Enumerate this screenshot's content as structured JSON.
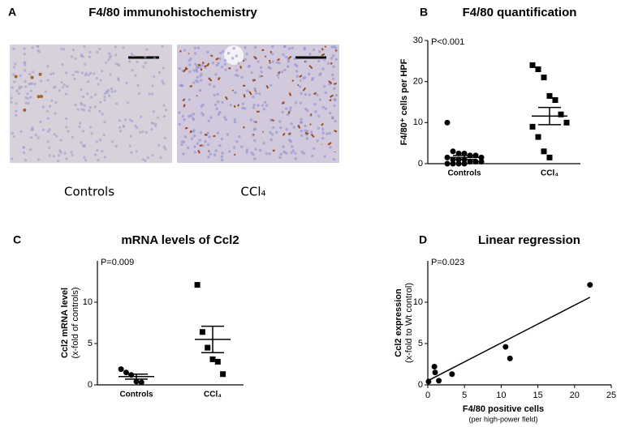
{
  "panel_a": {
    "label": "A",
    "title": "F4/80 immunohistochemistry",
    "captions": [
      "Controls",
      "CCl₄"
    ]
  },
  "chart_data": [
    {
      "type": "dot",
      "label": "B",
      "title": "F4/80 quantification",
      "annotation": "P<0.001",
      "ylabel": "F4/80⁺ cells per HPF",
      "categories": [
        "Controls",
        "CCl₄"
      ],
      "values": [
        [
          10,
          3,
          2.5,
          2.5,
          2,
          2,
          1.5,
          1.5,
          1,
          1,
          1,
          0.5,
          0.5,
          0.5,
          0,
          0,
          0,
          0
        ],
        [
          24,
          23,
          21,
          16.5,
          15.5,
          12,
          10,
          9,
          6.5,
          3,
          1.5
        ]
      ],
      "mean": [
        1.5,
        11.6
      ],
      "sem": [
        0.5,
        2.1
      ],
      "markers": [
        "circle",
        "square"
      ],
      "color": "#000000",
      "ylim": [
        0,
        30
      ],
      "yticks": [
        0,
        10,
        20,
        30
      ]
    },
    {
      "type": "dot",
      "label": "C",
      "title": "mRNA levels of Ccl2",
      "annotation": "P=0.009",
      "ylabel": "Ccl2 mRNA level",
      "ylabel_sub": "(x-fold of controls)",
      "categories": [
        "Controls",
        "CCl₄"
      ],
      "values": [
        [
          1.9,
          1.5,
          1.2,
          0.4,
          0.3
        ],
        [
          12.1,
          6.4,
          4.5,
          3.1,
          2.8,
          1.3
        ]
      ],
      "mean": [
        1.0,
        5.5
      ],
      "sem": [
        0.3,
        1.6
      ],
      "markers": [
        "circle",
        "square"
      ],
      "color": "#000000",
      "ylim": [
        0,
        15
      ],
      "yticks": [
        0,
        5,
        10
      ]
    },
    {
      "type": "scatter",
      "label": "D",
      "title": "Linear regression",
      "annotation": "P=0.023",
      "xlabel": "F4/80 positive cells",
      "xlabel_sub": "(per high-power field)",
      "ylabel": "Ccl2 expression",
      "ylabel_sub": "(x-fold to Wt control)",
      "x": [
        0.9,
        1.0,
        1.5,
        0.1,
        3.3,
        10.6,
        11.2,
        22.1
      ],
      "values": [
        2.2,
        1.5,
        0.5,
        0.4,
        1.3,
        4.6,
        3.2,
        12.1
      ],
      "fit": {
        "intercept": 0.5,
        "slope": 0.457
      },
      "color": "#000000",
      "xlim": [
        0,
        25
      ],
      "xticks": [
        0,
        5,
        10,
        15,
        20,
        25
      ],
      "ylim": [
        0,
        15
      ],
      "yticks": [
        0,
        5,
        10
      ]
    }
  ]
}
